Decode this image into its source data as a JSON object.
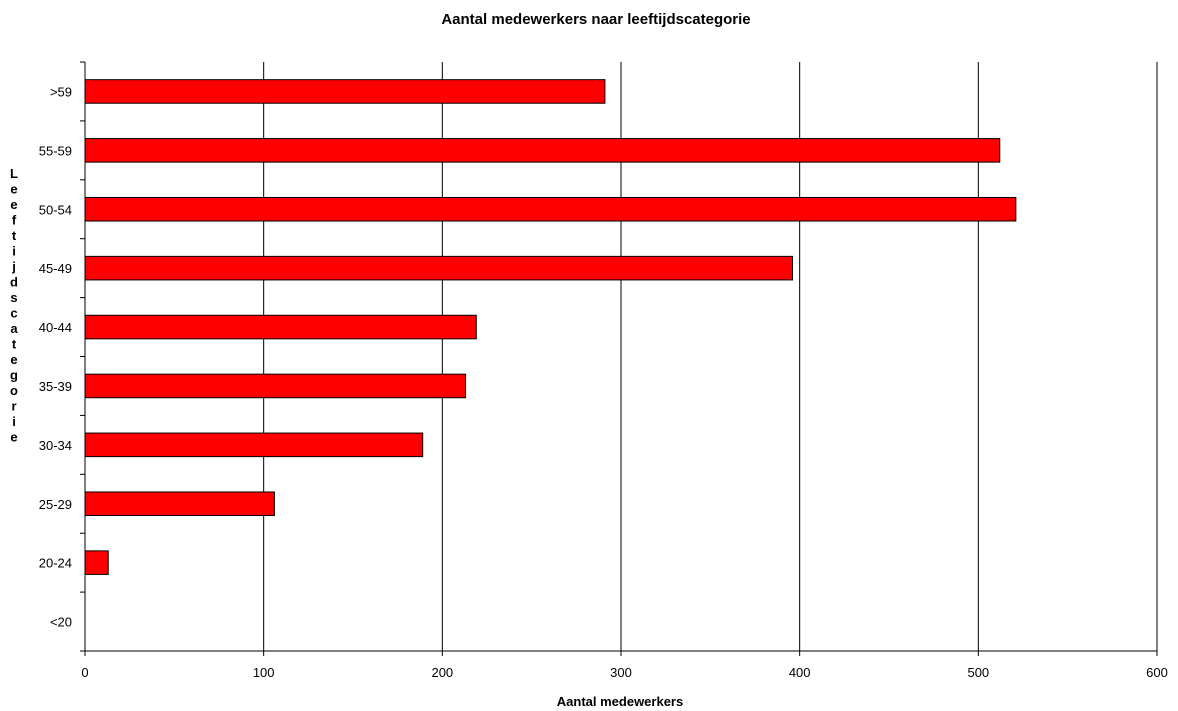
{
  "chart_data": {
    "type": "bar",
    "orientation": "horizontal",
    "title": "Aantal medewerkers naar leeftijdscategorie",
    "xlabel": "Aantal medewerkers",
    "ylabel": "Leeftijdscategorie",
    "categories": [
      ">59",
      "55-59",
      "50-54",
      "45-49",
      "40-44",
      "35-39",
      "30-34",
      "25-29",
      "20-24",
      "<20"
    ],
    "values": [
      291,
      512,
      521,
      396,
      219,
      213,
      189,
      106,
      13,
      0
    ],
    "xlim": [
      0,
      600
    ],
    "xticks": [
      0,
      100,
      200,
      300,
      400,
      500,
      600
    ],
    "xtick_labels": [
      "0",
      "100",
      "200",
      "300",
      "400",
      "500",
      "600"
    ],
    "grid": "vertical",
    "legend": "none",
    "colors": {
      "bar_fill": "#ff0000",
      "bar_stroke": "#000000",
      "grid": "#000000"
    }
  }
}
